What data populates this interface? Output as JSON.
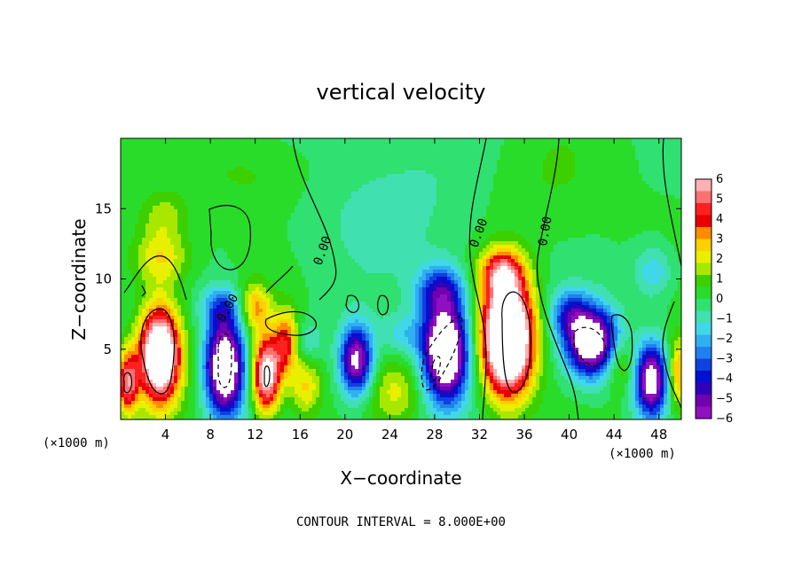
{
  "chart_data": {
    "type": "heatmap",
    "title": "vertical velocity",
    "xlabel": "X−coordinate",
    "ylabel": "Z−coordinate",
    "x_unit_left": "(×1000 m)",
    "x_unit_right": "(×1000 m)",
    "xlim": [
      0,
      50
    ],
    "ylim": [
      0,
      20
    ],
    "x_ticks": [
      4,
      8,
      12,
      16,
      20,
      24,
      28,
      32,
      36,
      40,
      44,
      48
    ],
    "x_tick_labels": [
      "4",
      "8",
      "12",
      "16",
      "20",
      "24",
      "28",
      "32",
      "36",
      "40",
      "44",
      "48"
    ],
    "y_ticks": [
      5,
      10,
      15
    ],
    "y_tick_labels": [
      "5",
      "10",
      "15"
    ],
    "footer": "CONTOUR INTERVAL = 8.000E+00",
    "contour_labels": [
      "0.00",
      "0.00",
      "0.00",
      "0.00"
    ],
    "colorbar": {
      "labels": [
        "6",
        "5",
        "4",
        "3",
        "2",
        "1",
        "0",
        "−1",
        "−2",
        "−3",
        "−4",
        "−5",
        "−6"
      ],
      "colors": [
        "#ffb0b0",
        "#ff7070",
        "#ff2020",
        "#e80000",
        "#ff8c00",
        "#ffd000",
        "#e8f000",
        "#a8e800",
        "#3cd000",
        "#2adc2a",
        "#30e070",
        "#40e0b0",
        "#40d8e8",
        "#30b0f0",
        "#2080f0",
        "#1040e0",
        "#0010d0",
        "#3000b8",
        "#7000b0",
        "#9010c0"
      ],
      "range": [
        -6,
        6
      ]
    },
    "blobs": [
      {
        "x": 3.5,
        "z": 4.6,
        "sx": 1.3,
        "sz": 2.4,
        "v": 9
      },
      {
        "x": 0.6,
        "z": 2.6,
        "sx": 0.7,
        "sz": 1.6,
        "v": 5
      },
      {
        "x": 3.6,
        "z": 11.5,
        "sx": 1.8,
        "sz": 1.4,
        "v": 2.5
      },
      {
        "x": 3.8,
        "z": 14.5,
        "sx": 1.5,
        "sz": 1.2,
        "v": 1.5
      },
      {
        "x": 9.3,
        "z": 3.7,
        "sx": 1.2,
        "sz": 2.4,
        "v": -8.5
      },
      {
        "x": 9.0,
        "z": 8.0,
        "sx": 1.2,
        "sz": 1.0,
        "v": -2.5
      },
      {
        "x": 13.0,
        "z": 3.2,
        "sx": 0.9,
        "sz": 1.9,
        "v": 7
      },
      {
        "x": 14.8,
        "z": 5.5,
        "sx": 0.8,
        "sz": 1.6,
        "v": 4
      },
      {
        "x": 12.0,
        "z": 8.0,
        "sx": 1.0,
        "sz": 1.2,
        "v": 3
      },
      {
        "x": 16.5,
        "z": 2.3,
        "sx": 1.0,
        "sz": 1.5,
        "v": 2.5
      },
      {
        "x": 16.5,
        "z": 5.5,
        "sx": 1.0,
        "sz": 1.0,
        "v": -1.5
      },
      {
        "x": 21.0,
        "z": 4.2,
        "sx": 1.0,
        "sz": 1.7,
        "v": -6.5
      },
      {
        "x": 24.5,
        "z": 2.0,
        "sx": 1.6,
        "sz": 1.6,
        "v": 1.8
      },
      {
        "x": 25.5,
        "z": 6.0,
        "sx": 1.6,
        "sz": 1.0,
        "v": -1.5
      },
      {
        "x": 29.0,
        "z": 4.8,
        "sx": 1.4,
        "sz": 2.4,
        "v": -9
      },
      {
        "x": 28.5,
        "z": 9.2,
        "sx": 1.5,
        "sz": 1.3,
        "v": -3.5
      },
      {
        "x": 34.5,
        "z": 5.8,
        "sx": 1.6,
        "sz": 2.8,
        "v": 11
      },
      {
        "x": 34.0,
        "z": 10.5,
        "sx": 1.4,
        "sz": 1.2,
        "v": 4
      },
      {
        "x": 42.0,
        "z": 5.5,
        "sx": 1.6,
        "sz": 1.7,
        "v": -8
      },
      {
        "x": 40.0,
        "z": 7.5,
        "sx": 1.2,
        "sz": 1.2,
        "v": -3
      },
      {
        "x": 44.5,
        "z": 4.0,
        "sx": 1.0,
        "sz": 1.3,
        "v": 2
      },
      {
        "x": 47.3,
        "z": 2.8,
        "sx": 1.0,
        "sz": 1.8,
        "v": -7
      },
      {
        "x": 49.7,
        "z": 3.2,
        "sx": 0.6,
        "sz": 1.8,
        "v": 3.5
      },
      {
        "x": 47.5,
        "z": 10.5,
        "sx": 1.2,
        "sz": 1.3,
        "v": -1.8
      },
      {
        "x": 24.0,
        "z": 15.5,
        "sx": 6.0,
        "sz": 4.0,
        "v": -0.8
      },
      {
        "x": 12.0,
        "z": 17.5,
        "sx": 4.0,
        "sz": 2.0,
        "v": 0.8
      },
      {
        "x": 38.0,
        "z": 17.0,
        "sx": 4.0,
        "sz": 3.0,
        "v": 0.6
      }
    ]
  }
}
